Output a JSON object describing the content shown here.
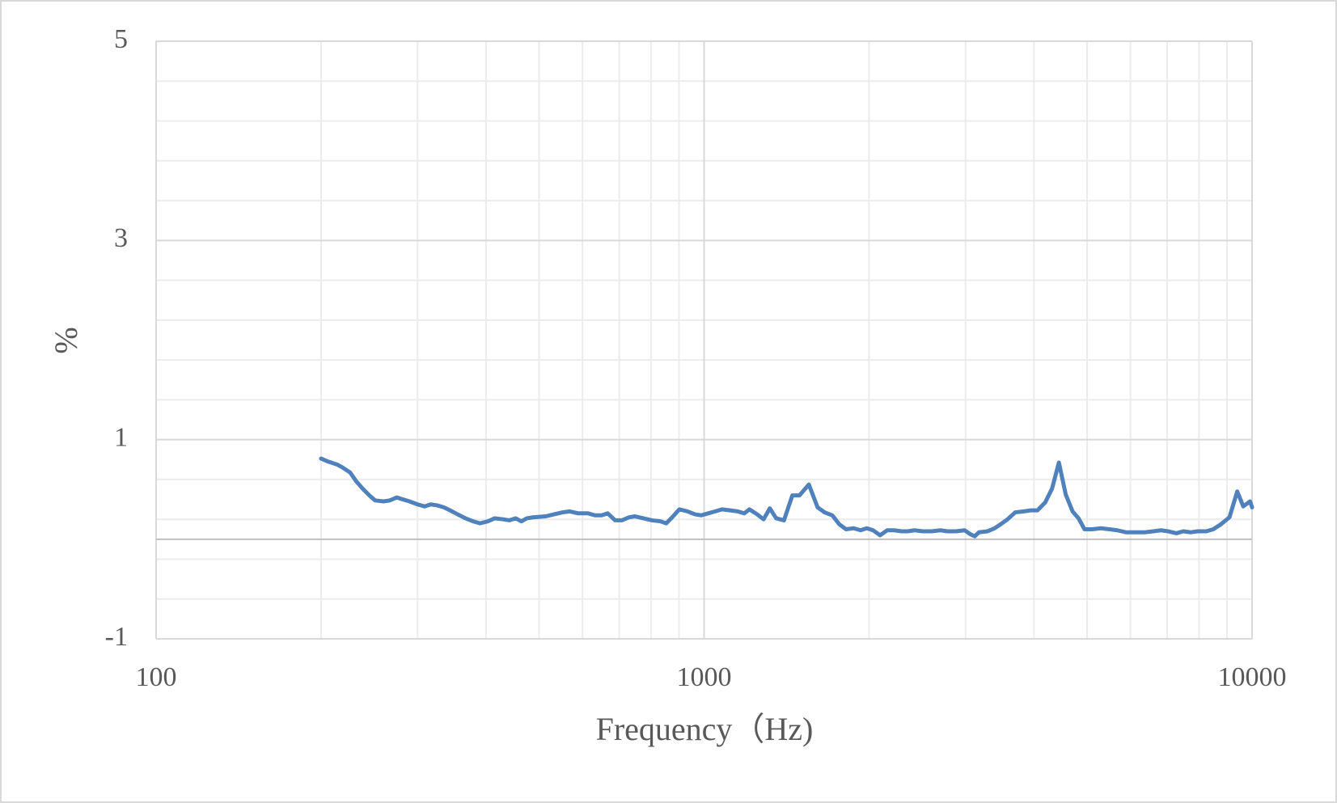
{
  "chart_data": {
    "type": "line",
    "x_label": "Frequency（Hz)",
    "y_label": "%",
    "x": [
      200,
      206,
      214,
      219,
      226,
      232,
      238,
      245,
      251,
      260,
      267,
      275,
      282,
      290,
      300,
      309,
      317,
      326,
      335,
      344,
      355,
      367,
      379,
      390,
      403,
      415,
      430,
      441,
      453,
      464,
      475,
      487,
      514,
      532,
      552,
      568,
      589,
      614,
      632,
      650,
      667,
      688,
      708,
      729,
      748,
      775,
      803,
      832,
      853,
      878,
      901,
      932,
      963,
      988,
      1017,
      1048,
      1078,
      1116,
      1151,
      1184,
      1210,
      1250,
      1284,
      1318,
      1354,
      1399,
      1449,
      1493,
      1553,
      1611,
      1659,
      1714,
      1765,
      1816,
      1875,
      1930,
      1981,
      2034,
      2095,
      2158,
      2222,
      2295,
      2353,
      2422,
      2510,
      2603,
      2699,
      2778,
      2882,
      2988,
      3062,
      3118,
      3174,
      3292,
      3389,
      3476,
      3579,
      3697,
      3832,
      3944,
      4058,
      4193,
      4316,
      4441,
      4570,
      4703,
      4823,
      4946,
      5110,
      5297,
      5490,
      5675,
      5883,
      6097,
      6371,
      6603,
      6822,
      7020,
      7276,
      7488,
      7734,
      7959,
      8252,
      8494,
      8773,
      9093,
      9396,
      9635,
      9916,
      10000
    ],
    "series": [
      {
        "color": "#4f81bd",
        "values": [
          0.81,
          0.78,
          0.75,
          0.72,
          0.67,
          0.58,
          0.51,
          0.44,
          0.39,
          0.38,
          0.39,
          0.42,
          0.4,
          0.38,
          0.35,
          0.33,
          0.35,
          0.34,
          0.32,
          0.29,
          0.25,
          0.21,
          0.18,
          0.16,
          0.18,
          0.21,
          0.2,
          0.19,
          0.21,
          0.18,
          0.21,
          0.22,
          0.23,
          0.25,
          0.27,
          0.28,
          0.26,
          0.26,
          0.24,
          0.24,
          0.26,
          0.19,
          0.19,
          0.22,
          0.23,
          0.21,
          0.19,
          0.18,
          0.16,
          0.23,
          0.3,
          0.28,
          0.25,
          0.24,
          0.26,
          0.28,
          0.3,
          0.29,
          0.28,
          0.26,
          0.3,
          0.25,
          0.2,
          0.31,
          0.21,
          0.19,
          0.44,
          0.44,
          0.55,
          0.32,
          0.27,
          0.24,
          0.15,
          0.1,
          0.11,
          0.09,
          0.11,
          0.09,
          0.04,
          0.09,
          0.09,
          0.08,
          0.08,
          0.09,
          0.08,
          0.08,
          0.09,
          0.08,
          0.08,
          0.09,
          0.05,
          0.03,
          0.07,
          0.08,
          0.11,
          0.15,
          0.2,
          0.27,
          0.28,
          0.29,
          0.29,
          0.37,
          0.51,
          0.77,
          0.45,
          0.28,
          0.21,
          0.1,
          0.1,
          0.11,
          0.1,
          0.09,
          0.07,
          0.07,
          0.07,
          0.08,
          0.09,
          0.08,
          0.06,
          0.08,
          0.07,
          0.08,
          0.08,
          0.1,
          0.15,
          0.22,
          0.48,
          0.33,
          0.38,
          0.32
        ]
      }
    ],
    "xlim": [
      100,
      10000
    ],
    "xticks": [
      100,
      1000,
      10000
    ],
    "x_log": true,
    "ylim": [
      -1,
      5
    ],
    "yticks": [
      -1,
      1,
      3,
      5
    ],
    "grid": true,
    "minor_grid": true
  }
}
